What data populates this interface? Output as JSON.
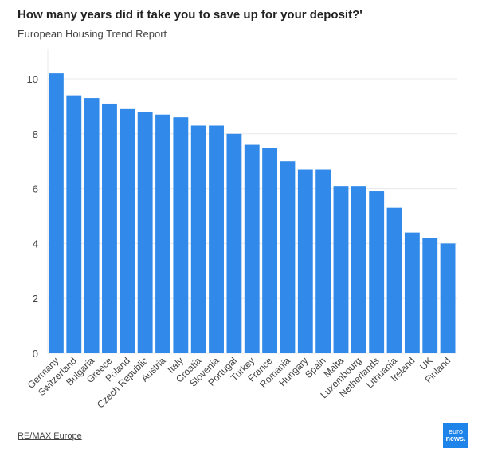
{
  "header": {
    "title": "How many years did it take you to save up for your deposit?'",
    "subtitle": "European Housing Trend Report"
  },
  "footer": {
    "source": "RE/MAX Europe",
    "logo_top": "euro",
    "logo_bottom": "news."
  },
  "colors": {
    "bar": "#318ae9",
    "grid": "#e8e8e8"
  },
  "chart_data": {
    "type": "bar",
    "title": "How many years did it take you to save up for your deposit?'",
    "subtitle": "European Housing Trend Report",
    "xlabel": "",
    "ylabel": "",
    "ylim": [
      0,
      10.2
    ],
    "yticks": [
      0,
      2,
      4,
      6,
      8,
      10
    ],
    "grid": true,
    "categories": [
      "Germany",
      "Switzerland",
      "Bulgaria",
      "Greece",
      "Poland",
      "Czech Republic",
      "Austria",
      "Italy",
      "Croatia",
      "Slovenia",
      "Portugal",
      "Turkey",
      "France",
      "Romania",
      "Hungary",
      "Spain",
      "Malta",
      "Luxembourg",
      "Netherlands",
      "Lithuania",
      "Ireland",
      "UK",
      "Finland"
    ],
    "values": [
      10.2,
      9.4,
      9.3,
      9.1,
      8.9,
      8.8,
      8.7,
      8.6,
      8.3,
      8.3,
      8.0,
      7.6,
      7.5,
      7.0,
      6.7,
      6.7,
      6.1,
      6.1,
      5.9,
      5.3,
      4.4,
      4.2,
      4.0
    ]
  }
}
